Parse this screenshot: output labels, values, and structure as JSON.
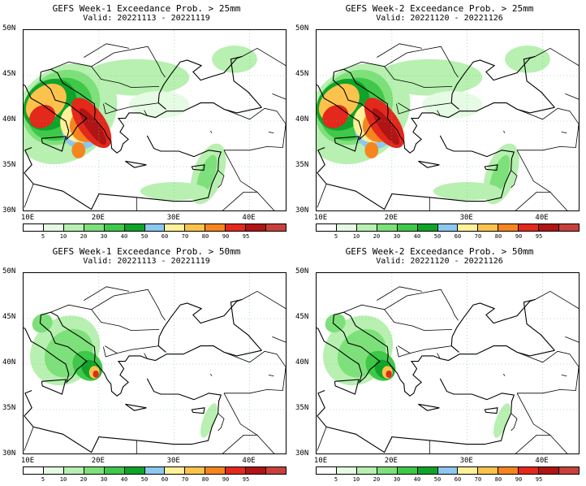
{
  "panels": [
    {
      "title": "GEFS Week-1 Exceedance Prob. > 25mm",
      "valid": "Valid: 20221113 - 20221119",
      "threshold": 25
    },
    {
      "title": "GEFS Week-2 Exceedance Prob. > 25mm",
      "valid": "Valid: 20221120 - 20221126",
      "threshold": 25
    },
    {
      "title": "GEFS Week-1 Exceedance Prob. > 50mm",
      "valid": "Valid: 20221113 - 20221119",
      "threshold": 50
    },
    {
      "title": "GEFS Week-2 Exceedance Prob. > 50mm",
      "valid": "Valid: 20221120 - 20221126",
      "threshold": 50
    }
  ],
  "axes": {
    "lat_labels": [
      "50N",
      "45N",
      "40N",
      "35N",
      "30N"
    ],
    "lon_labels": [
      "10E",
      "20E",
      "30E",
      "40E"
    ],
    "lat_range": [
      30,
      50
    ],
    "lon_range": [
      10,
      45
    ]
  },
  "colorbar": {
    "labels": [
      "5",
      "10",
      "20",
      "30",
      "40",
      "50",
      "60",
      "70",
      "80",
      "90",
      "95"
    ],
    "colors": [
      "#ffffff",
      "#e6fbe3",
      "#b7f0b0",
      "#7ee07a",
      "#3fc84a",
      "#10a32a",
      "#8cc8f0",
      "#fff09a",
      "#fcc34c",
      "#f7851f",
      "#e3281c",
      "#b01414",
      "#c8403c"
    ]
  }
}
